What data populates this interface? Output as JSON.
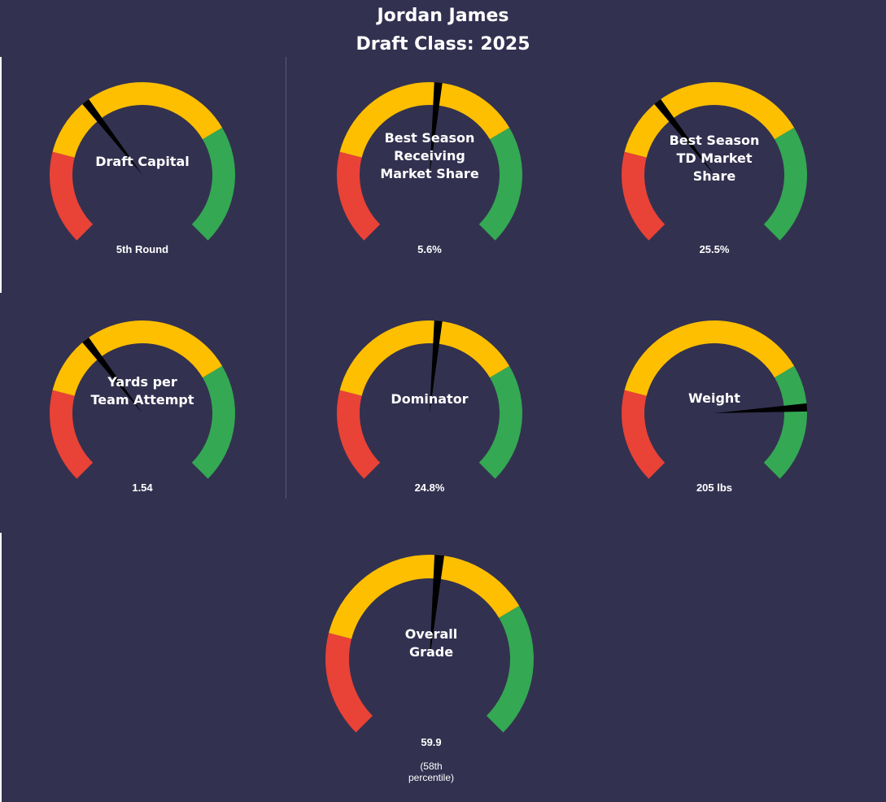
{
  "header": {
    "player_name": "Jordan James",
    "draft_class": "Draft Class: 2025"
  },
  "colors": {
    "background": "#333150",
    "low": "#e94236",
    "mid": "#fdbf00",
    "high": "#34a853",
    "needle": "#000000",
    "text": "#ffffff"
  },
  "chart_data": [
    {
      "type": "gauge",
      "label": "Draft Capital",
      "value_text": "5th Round",
      "needle_fraction": 0.36
    },
    {
      "type": "gauge",
      "label": "Best Season\nReceiving\nMarket Share",
      "value_text": "5.6%",
      "needle_fraction": 0.52
    },
    {
      "type": "gauge",
      "label": "Best Season\nTD Market\nShare",
      "value_text": "25.5%",
      "needle_fraction": 0.36
    },
    {
      "type": "gauge",
      "label": "Yards per\nTeam Attempt",
      "value_text": "1.54",
      "needle_fraction": 0.36
    },
    {
      "type": "gauge",
      "label": "Dominator",
      "value_text": "24.8%",
      "needle_fraction": 0.52
    },
    {
      "type": "gauge",
      "label": "Weight",
      "value_text": "205 lbs",
      "needle_fraction": 0.82
    },
    {
      "type": "gauge",
      "label": "Overall\nGrade",
      "value_text": "59.9",
      "sub_text": "(58th\npercentile)",
      "needle_fraction": 0.52
    }
  ]
}
